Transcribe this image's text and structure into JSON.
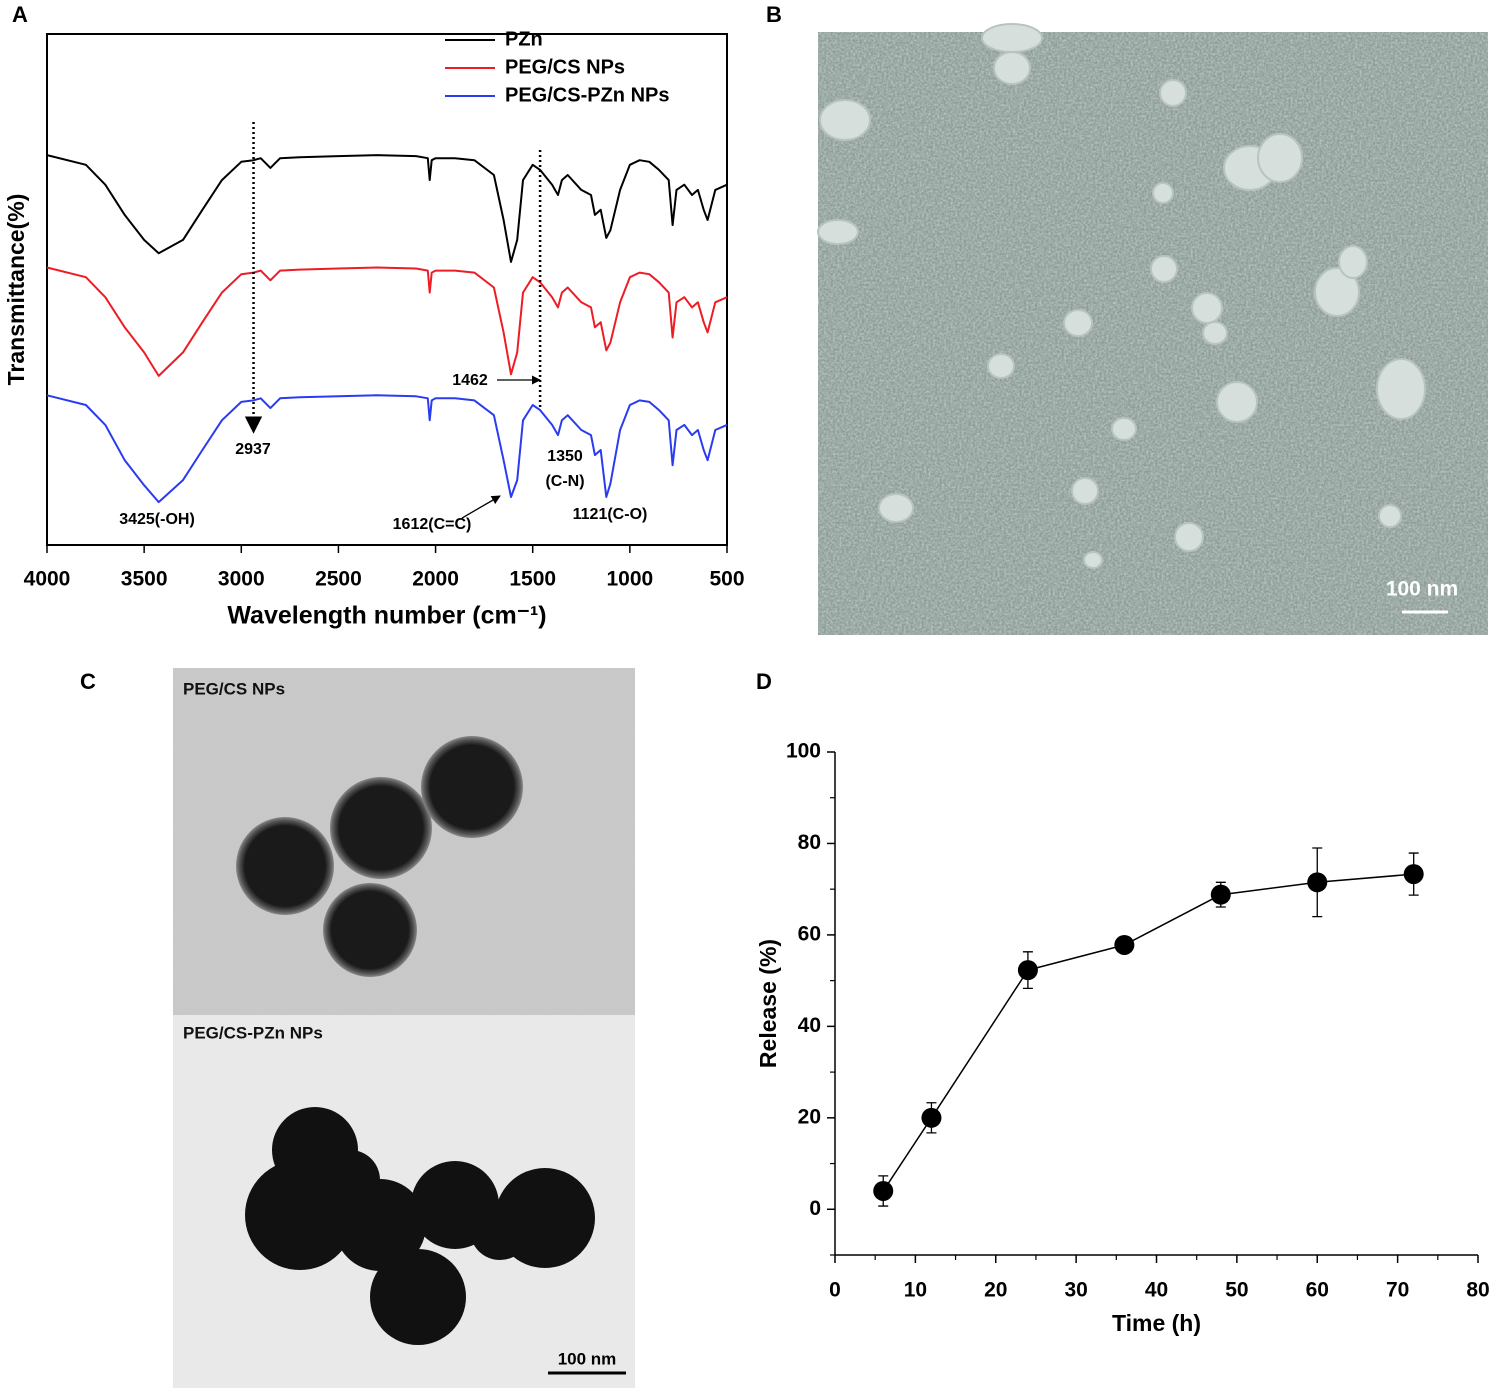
{
  "chart_data": [
    {
      "type": "line",
      "xlabel": "Wavelength number (cm⁻¹)",
      "ylabel": "Transmittance(%)",
      "xlim": [
        4000,
        500
      ],
      "xticks": [
        4000,
        3500,
        3000,
        2500,
        2000,
        1500,
        1000,
        500
      ],
      "ylim": [
        0,
        100
      ],
      "legend": "upper right",
      "x": [
        4000,
        3800,
        3700,
        3600,
        3500,
        3425,
        3300,
        3200,
        3100,
        3000,
        2937,
        2900,
        2850,
        2800,
        2700,
        2500,
        2300,
        2100,
        2040,
        2030,
        2020,
        2000,
        1900,
        1800,
        1700,
        1650,
        1612,
        1580,
        1550,
        1500,
        1462,
        1400,
        1370,
        1350,
        1320,
        1250,
        1200,
        1180,
        1150,
        1121,
        1100,
        1050,
        1000,
        950,
        900,
        850,
        800,
        780,
        760,
        720,
        680,
        650,
        620,
        600,
        560,
        500
      ],
      "series": [
        {
          "name": "PZn",
          "color": "#000000",
          "values": [
            76.3,
            74.4,
            70.5,
            64.6,
            59.7,
            57.1,
            59.7,
            65.6,
            71.4,
            75,
            75.3,
            75.7,
            73.8,
            75.7,
            75.9,
            76.1,
            76.3,
            76.1,
            75.7,
            71.4,
            75.3,
            75.7,
            75.7,
            75.3,
            72.4,
            63.6,
            55.4,
            59.7,
            71.4,
            74.4,
            73.4,
            70.5,
            68.5,
            71.4,
            72.4,
            69.5,
            68.5,
            64.6,
            65.6,
            60.1,
            61.6,
            69.5,
            74.4,
            75.3,
            75,
            73.4,
            71.4,
            62.6,
            69.5,
            70.5,
            68.5,
            69.5,
            65.6,
            63.6,
            69.5,
            70.5
          ]
        },
        {
          "name": "PEG/CS NPs",
          "color": "#ee1c24",
          "values": [
            54.3,
            52.4,
            48.5,
            42.6,
            37.7,
            33.1,
            37.7,
            43.6,
            49.4,
            53,
            53.3,
            53.7,
            51.8,
            53.7,
            53.9,
            54.1,
            54.3,
            54.1,
            53.7,
            49.4,
            53.3,
            53.7,
            53.7,
            53.3,
            50.4,
            41.6,
            33.4,
            37.7,
            49.4,
            52.4,
            51.4,
            48.5,
            46.5,
            49.4,
            50.4,
            47.5,
            46.5,
            42.6,
            43.6,
            38.1,
            39.6,
            47.5,
            52.4,
            53.3,
            53,
            51.4,
            49.4,
            40.6,
            47.5,
            48.5,
            46.5,
            47.5,
            43.6,
            41.6,
            47.5,
            48.5
          ]
        },
        {
          "name": "PEG/CS-PZn NPs",
          "color": "#2a3bf0",
          "values": [
            29.3,
            27.4,
            23.5,
            16.6,
            11.7,
            8.4,
            12.7,
            18.6,
            24.4,
            28,
            28.3,
            28.7,
            26.8,
            28.7,
            28.9,
            29.1,
            29.3,
            29.1,
            28.7,
            24.4,
            28.3,
            28.7,
            28.7,
            28.3,
            25.4,
            16.6,
            9.4,
            12.7,
            24.4,
            27.4,
            26.4,
            23.5,
            21.5,
            24.4,
            25.4,
            22.5,
            21.5,
            17.6,
            18.6,
            9.4,
            12,
            22.5,
            27.4,
            28.3,
            28,
            26.4,
            24.4,
            15.6,
            22.5,
            23.5,
            21.5,
            22.5,
            18.6,
            16.6,
            22.5,
            23.5
          ]
        }
      ],
      "reference_lines": [
        2937,
        1462
      ],
      "annotations": [
        "2937",
        "1462",
        "3425(-OH)",
        "1612(C=C)",
        "1350",
        "(C-N)",
        "1121(C-O)"
      ]
    },
    {
      "type": "line",
      "xlabel": "Time (h)",
      "ylabel": "Release (%)",
      "marker": "circle",
      "color": "#000000",
      "xlim": [
        0,
        80
      ],
      "xticks": [
        0,
        10,
        20,
        30,
        40,
        50,
        60,
        70,
        80
      ],
      "xminorticks": [
        5,
        15,
        25,
        35,
        45,
        55,
        65,
        75
      ],
      "ylim": [
        -10,
        100
      ],
      "yticks": [
        0,
        20,
        40,
        60,
        80,
        100
      ],
      "yminorticks": [
        -10,
        10,
        30,
        50,
        70,
        90
      ],
      "x": [
        6,
        12,
        24,
        36,
        48,
        60,
        72
      ],
      "values": [
        4,
        20,
        52.3,
        57.8,
        68.8,
        71.5,
        73.3
      ],
      "errors": [
        3.3,
        3.3,
        4,
        0.6,
        2.7,
        7.5,
        4.6
      ]
    }
  ],
  "panel_labels": [
    "A",
    "B",
    "C",
    "D"
  ],
  "sem_image": {
    "scale_bar": "100 nm"
  },
  "tem_image": {
    "top_label": "PEG/CS NPs",
    "bottom_label": "PEG/CS-PZn NPs",
    "scale_bar": "100 nm"
  }
}
